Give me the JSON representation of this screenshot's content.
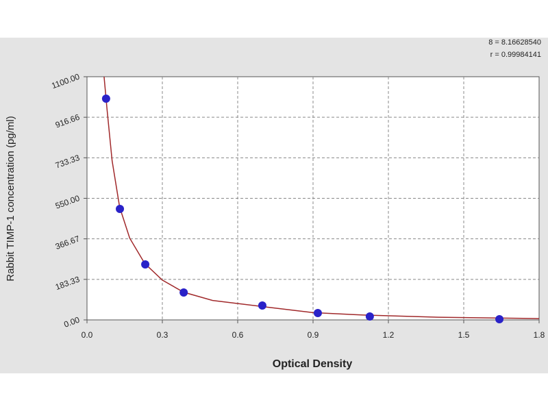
{
  "chart_data": {
    "type": "scatter",
    "xlabel": "Optical Density",
    "ylabel": "Rabbit TIMP-1 concentration (pg/ml)",
    "annotations": [
      "8 = 8.16628540",
      "r = 0.99984141"
    ],
    "x": [
      0.076,
      0.131,
      0.232,
      0.385,
      0.698,
      0.919,
      1.126,
      1.642
    ],
    "values": [
      1001,
      502,
      251,
      124,
      65,
      31,
      15.5,
      3
    ],
    "color": "#2a22c8",
    "curve": {
      "color": "#a0282a",
      "x": [
        0.068,
        0.08,
        0.1,
        0.13,
        0.17,
        0.23,
        0.3,
        0.385,
        0.5,
        0.7,
        0.9,
        1.1,
        1.4,
        1.8
      ],
      "values": [
        1100,
        950,
        720,
        510,
        370,
        255,
        180,
        125,
        88,
        60,
        33,
        22,
        12,
        6
      ]
    },
    "xlim": [
      0,
      1.8
    ],
    "xticks": [
      {
        "value": 0,
        "label": "0.0"
      },
      0.3,
      0.6,
      0.9,
      1.2,
      1.5,
      1.8
    ],
    "ylim": [
      0,
      1100
    ],
    "yticks": [
      {
        "value": 0,
        "label": "0.00"
      },
      183.33,
      366.67,
      {
        "value": 550,
        "label": "550.00"
      },
      733.33,
      916.66,
      {
        "value": 1100,
        "label": "1100.00"
      }
    ],
    "grid": true
  }
}
